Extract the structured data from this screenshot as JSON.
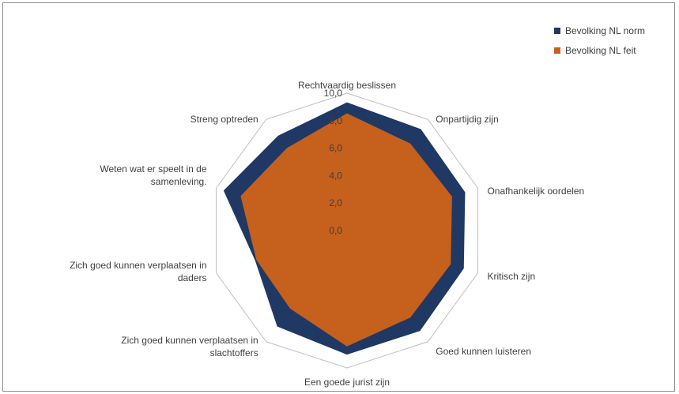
{
  "chart_data": {
    "type": "radar",
    "categories": [
      "Rechtvaardig beslissen",
      "Onpartijdig zijn",
      "Onafhankelijk oordelen",
      "Kritisch zijn",
      "Goed kunnen luisteren",
      "Een goede jurist zijn",
      "Zich goed kunnen verplaatsen in slachtoffers",
      "Zich goed kunnen verplaatsen in daders",
      "Weten wat er speelt in de samenleving.",
      "Streng optreden"
    ],
    "category_lines": [
      [
        "Rechtvaardig beslissen"
      ],
      [
        "Onpartijdig zijn"
      ],
      [
        "Onafhankelijk oordelen"
      ],
      [
        "Kritisch zijn"
      ],
      [
        "Goed kunnen luisteren"
      ],
      [
        "Een goede jurist zijn"
      ],
      [
        "Zich goed kunnen verplaatsen in",
        "slachtoffers"
      ],
      [
        "Zich goed kunnen verplaatsen in",
        "daders"
      ],
      [
        "Weten wat er speelt in de",
        "samenleving."
      ],
      [
        "Streng optreden"
      ]
    ],
    "series": [
      {
        "name": "Bevolking NL norm",
        "color": "#1f3864",
        "values": [
          9.3,
          9.1,
          9.0,
          8.9,
          9.0,
          9.0,
          8.6,
          7.0,
          9.4,
          8.5
        ]
      },
      {
        "name": "Bevolking NL feit",
        "color": "#c5601d",
        "values": [
          8.5,
          7.8,
          8.0,
          7.9,
          7.8,
          8.4,
          7.0,
          6.9,
          8.1,
          7.4
        ]
      }
    ],
    "rlim": [
      0,
      10
    ],
    "r_ticks": [
      0,
      2,
      4,
      6,
      8,
      10
    ],
    "r_tick_labels": [
      "0,0",
      "2,0",
      "4,0",
      "6,0",
      "8,0",
      "10,0"
    ],
    "grid": "outer ring only",
    "legend": "top-right"
  }
}
